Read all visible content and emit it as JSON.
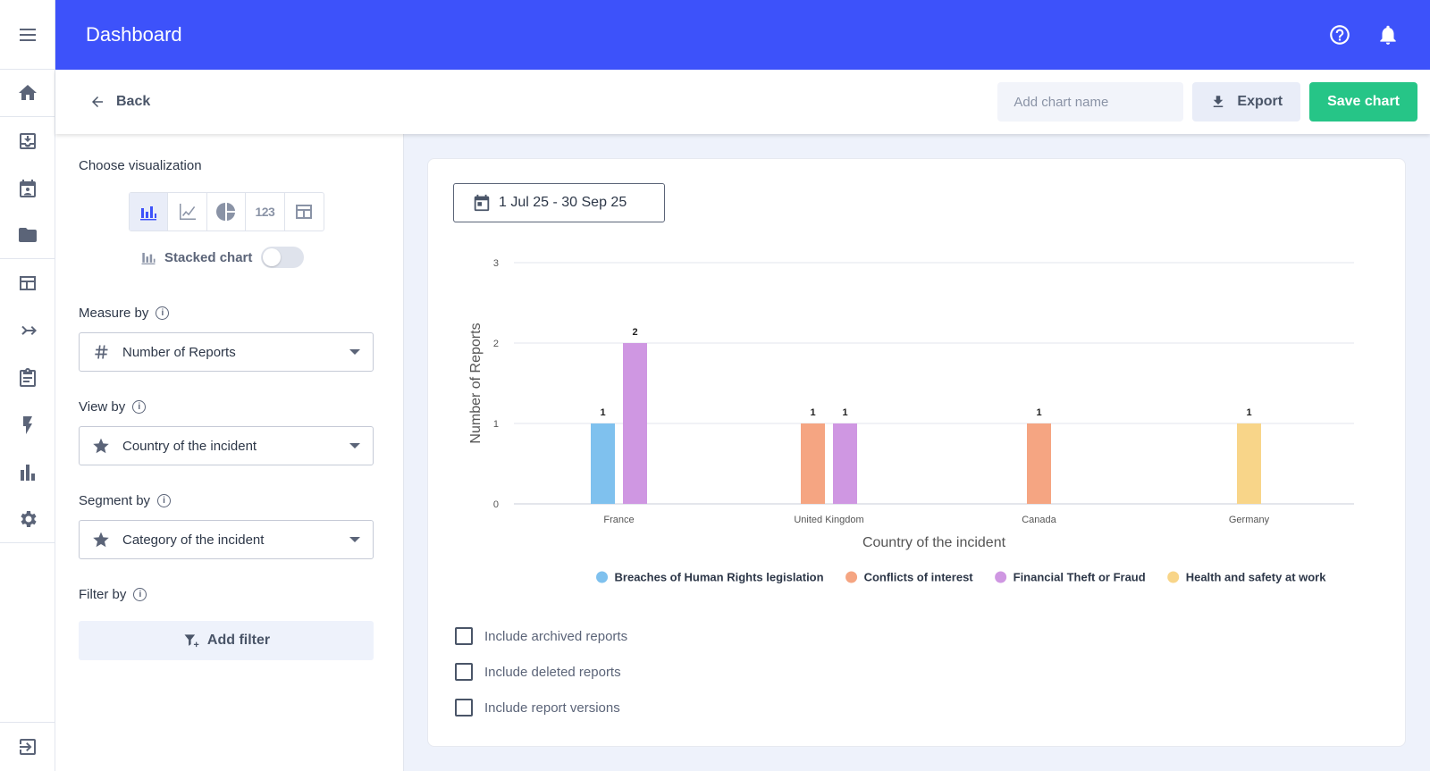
{
  "header": {
    "title": "Dashboard"
  },
  "subheader": {
    "back_label": "Back",
    "chart_name_placeholder": "Add chart name",
    "export_label": "Export",
    "save_label": "Save chart"
  },
  "left_panel": {
    "choose_viz_label": "Choose visualization",
    "viz_options": [
      "bar-chart",
      "line-chart",
      "pie-chart",
      "number",
      "table"
    ],
    "viz_number_label": "123",
    "stacked_label": "Stacked chart",
    "stacked_on": false,
    "measure_label": "Measure by",
    "measure_value": "Number of Reports",
    "view_label": "View by",
    "view_value": "Country of the incident",
    "segment_label": "Segment by",
    "segment_value": "Category of the incident",
    "filter_label": "Filter by",
    "add_filter_label": "Add filter"
  },
  "card": {
    "date_range": "1 Jul 25 - 30 Sep 25",
    "checkboxes": [
      {
        "label": "Include archived reports",
        "checked": false
      },
      {
        "label": "Include deleted reports",
        "checked": false
      },
      {
        "label": "Include report versions",
        "checked": false
      }
    ]
  },
  "chart_data": {
    "type": "bar",
    "xlabel": "Country of the incident",
    "ylabel": "Number of Reports",
    "ylim": [
      0,
      3
    ],
    "yticks": [
      0,
      1,
      2,
      3
    ],
    "grid": true,
    "legend_position": "bottom",
    "categories": [
      "France",
      "United Kingdom",
      "Canada",
      "Germany"
    ],
    "series": [
      {
        "name": "Breaches of Human Rights legislation",
        "color": "#7fc1ee",
        "values": [
          1,
          0,
          0,
          0
        ]
      },
      {
        "name": "Conflicts of interest",
        "color": "#f5a582",
        "values": [
          0,
          1,
          1,
          0
        ]
      },
      {
        "name": "Financial Theft or Fraud",
        "color": "#cf97e2",
        "values": [
          2,
          1,
          0,
          0
        ]
      },
      {
        "name": "Health and safety at work",
        "color": "#f8d589",
        "values": [
          0,
          0,
          0,
          1
        ]
      }
    ]
  }
}
